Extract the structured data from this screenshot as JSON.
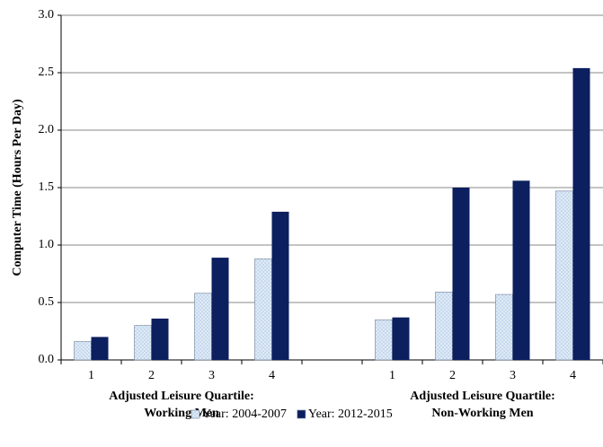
{
  "chart_data": {
    "type": "bar",
    "y_label": "Computer Time (Hours Per Day)",
    "categories": [
      "1",
      "2",
      "3",
      "4",
      null,
      "1",
      "2",
      "3",
      "4"
    ],
    "group_labels": [
      [
        "Adjusted Leisure Quartile:",
        "Working Men"
      ],
      [
        "Adjusted Leisure Quartile:",
        "Non-Working Men"
      ]
    ],
    "series": [
      {
        "name": "Year: 2004-2007",
        "color": "#c6d9ee",
        "values": [
          0.16,
          0.3,
          0.58,
          0.88,
          null,
          0.35,
          0.59,
          0.57,
          1.47
        ]
      },
      {
        "name": "Year: 2012-2015",
        "color": "#0c1f5e",
        "values": [
          0.2,
          0.36,
          0.89,
          1.29,
          null,
          0.37,
          1.5,
          1.56,
          2.54
        ]
      }
    ],
    "ylim": [
      0,
      3
    ],
    "yticks": [
      {
        "value": 0,
        "label": "0.0"
      },
      0.5,
      {
        "value": 1,
        "label": "1.0"
      },
      1.5,
      {
        "value": 2,
        "label": "2.0"
      },
      2.5,
      {
        "value": 3,
        "label": "3.0"
      }
    ],
    "grid": true
  }
}
